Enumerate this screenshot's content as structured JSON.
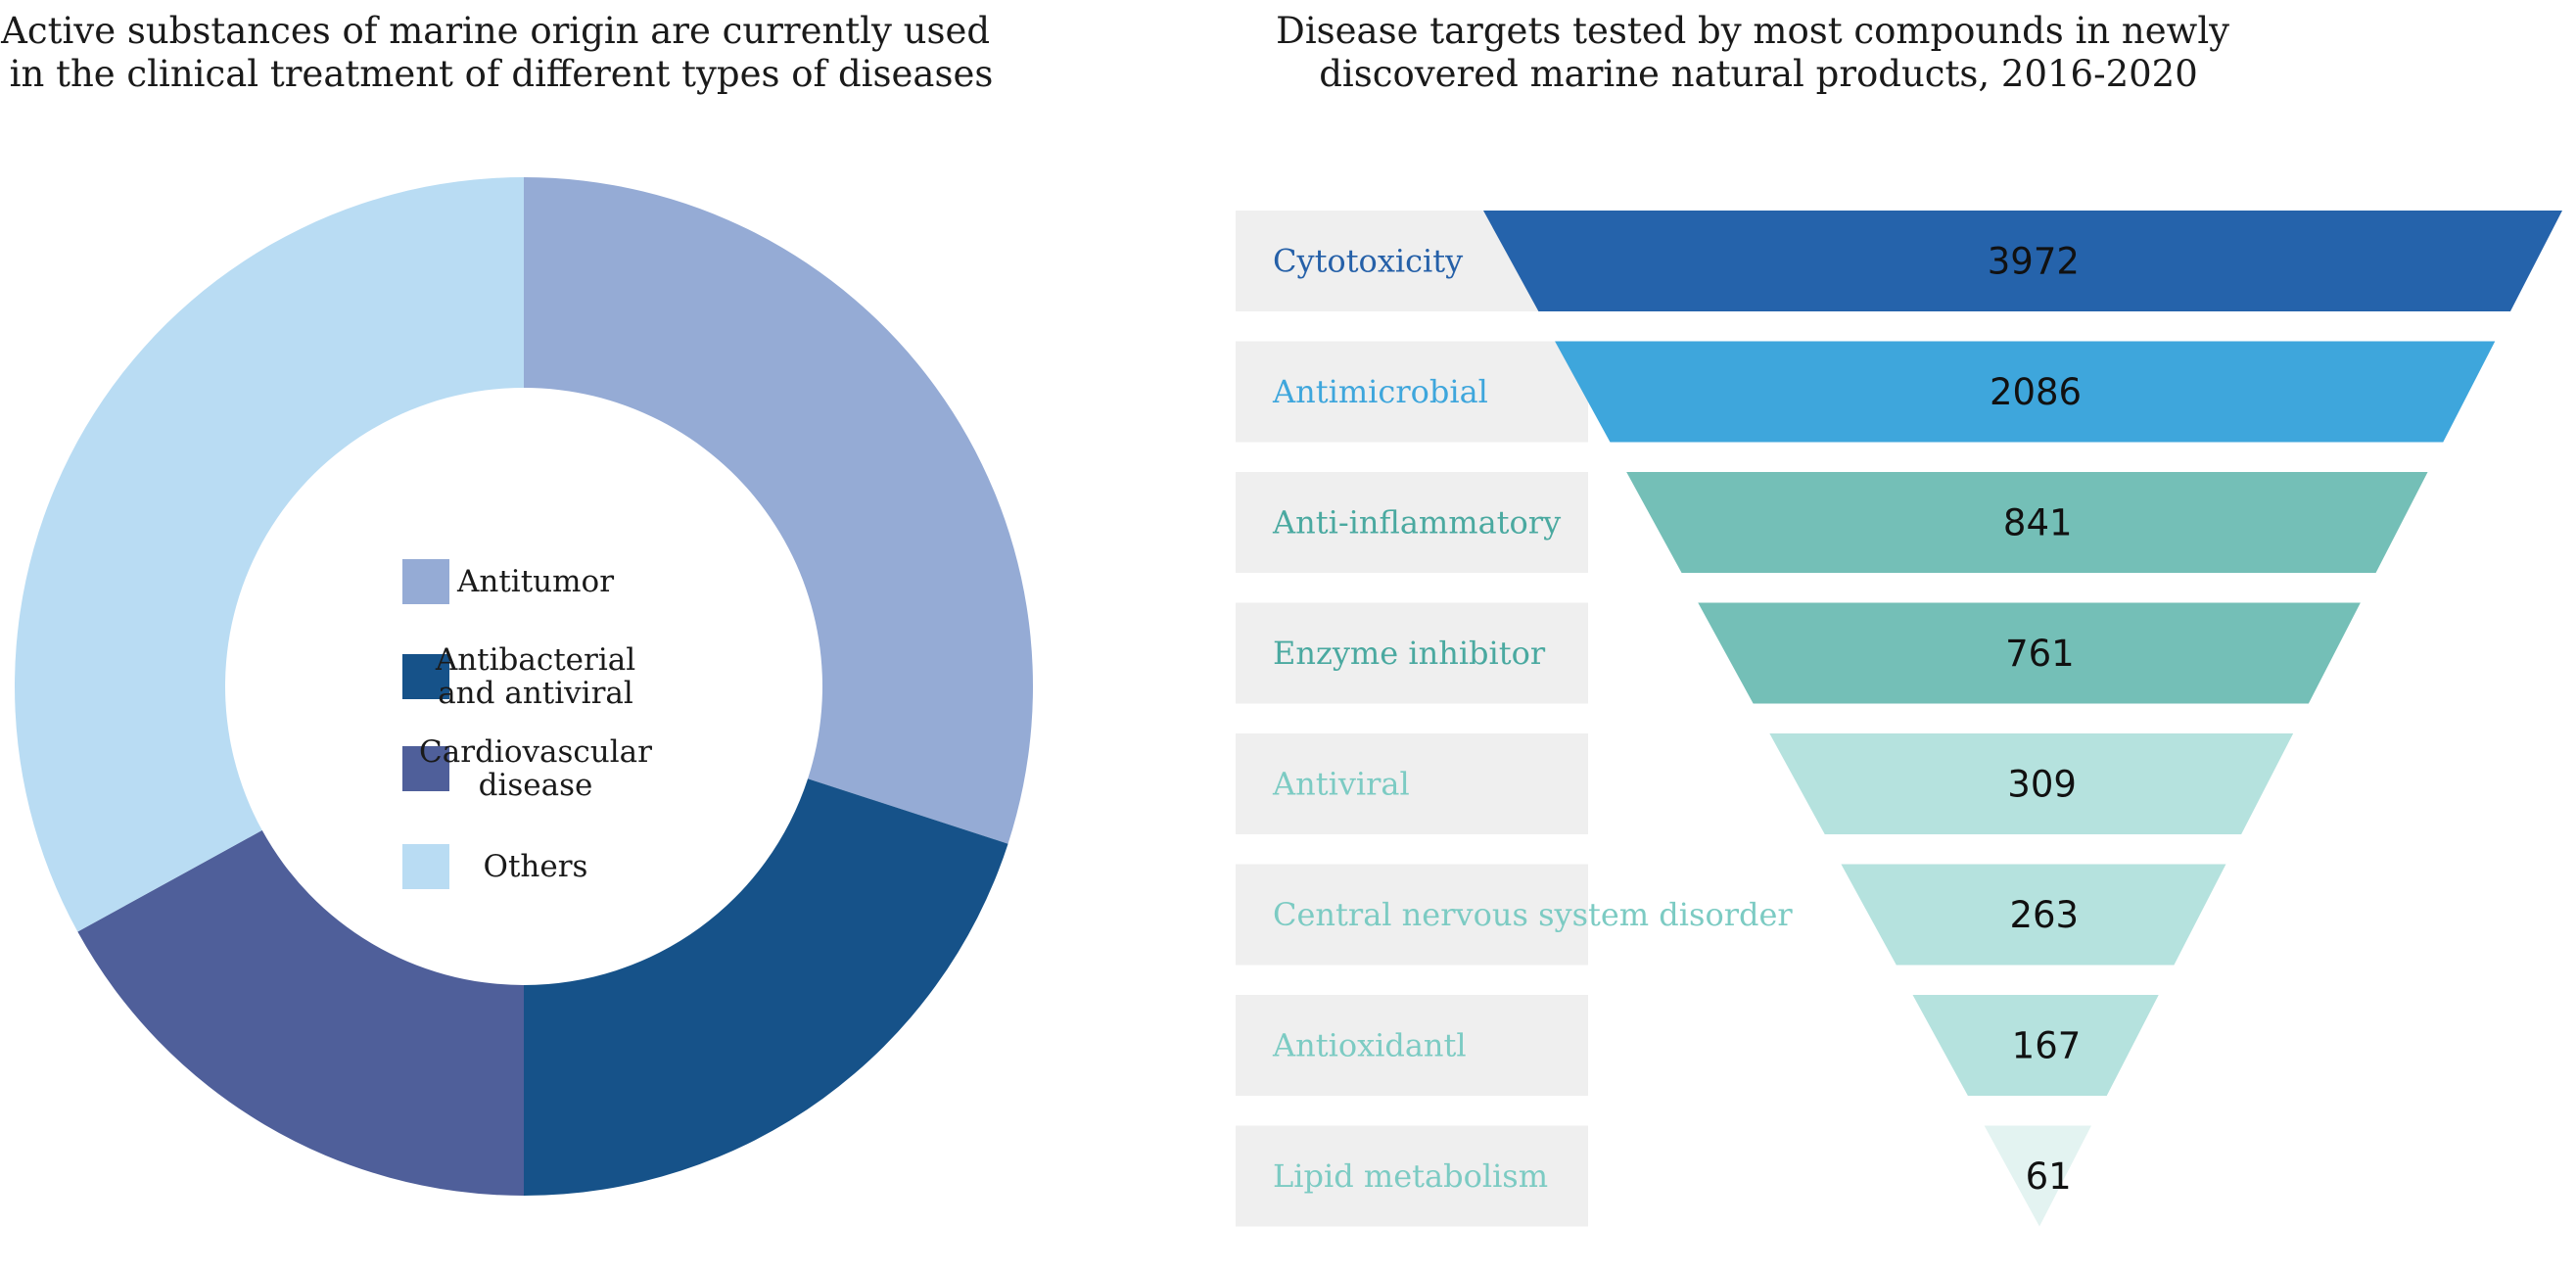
{
  "chart_data": [
    {
      "type": "pie",
      "variant": "donut",
      "title": "Active substances of marine origin are currently used in the clinical treatment of different types of diseases",
      "title_lines": [
        "Active substances of marine origin are currently used",
        "in the clinical treatment of different types of diseases"
      ],
      "legend_position": "center",
      "slices": [
        {
          "name": "Antitumor",
          "legend_lines": [
            "Antitumor"
          ],
          "value": 30,
          "color": "#95abd5"
        },
        {
          "name": "Antibacterial and antiviral",
          "legend_lines": [
            "Antibacterial",
            "and  antiviral"
          ],
          "value": 20,
          "color": "#165289"
        },
        {
          "name": "Cardiovascular disease",
          "legend_lines": [
            "Cardiovascular",
            "disease"
          ],
          "value": 17,
          "color": "#4f5f9a"
        },
        {
          "name": "Others",
          "legend_lines": [
            "Others"
          ],
          "value": 33,
          "color": "#b9dcf3"
        }
      ]
    },
    {
      "type": "bar",
      "variant": "funnel",
      "title": "Disease targets tested by most compounds in newly discovered marine natural products, 2016-2020",
      "title_lines": [
        "Disease targets tested by most compounds in newly",
        "discovered marine natural products, 2016-2020"
      ],
      "categories": [
        "Cytotoxicity",
        "Antimicrobial",
        "Anti-inflammatory",
        "Enzyme inhibitor",
        "Antiviral",
        "Central nervous system disorder",
        "Antioxidantl",
        "Lipid metabolism"
      ],
      "values": [
        3972,
        2086,
        841,
        761,
        309,
        263,
        167,
        61
      ],
      "colors": [
        "#2563ab",
        "#3ea6dc",
        "#74bfb7",
        "#74bfb7",
        "#b5e2de",
        "#b5e2de",
        "#b5e2de",
        "#e3f3f1"
      ],
      "label_colors": [
        "#2560a8",
        "#3ea6dc",
        "#4aa9a0",
        "#4aa9a0",
        "#7ccbc3",
        "#7ccbc3",
        "#7ccbc3",
        "#7ccbc3"
      ]
    }
  ]
}
